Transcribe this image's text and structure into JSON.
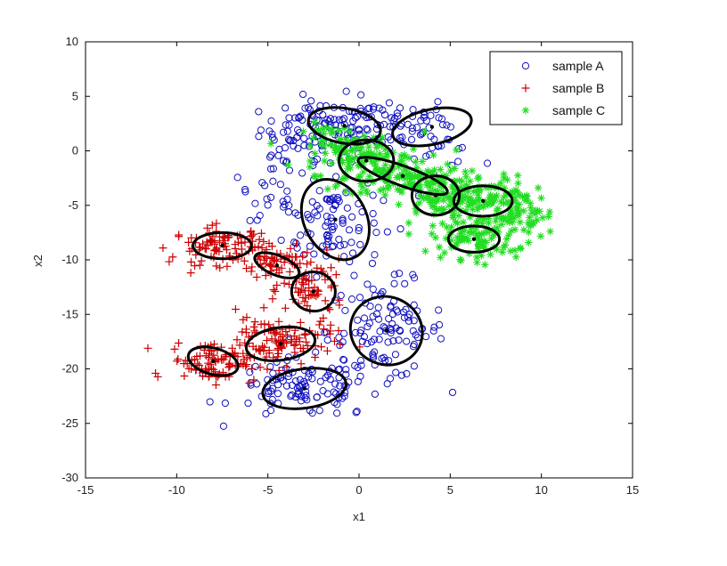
{
  "chart_data": {
    "type": "scatter",
    "xlabel": "x1",
    "ylabel": "x2",
    "xlim": [
      -15,
      15
    ],
    "ylim": [
      -30,
      10
    ],
    "xticks": [
      -15,
      -10,
      -5,
      0,
      5,
      10,
      15
    ],
    "yticks": [
      10,
      5,
      0,
      -5,
      -10,
      -15,
      -20,
      -25,
      -30
    ],
    "grid": false,
    "legend_position": "top-right",
    "series": [
      {
        "name": "sample A",
        "marker": "circle",
        "color": "#1010c0",
        "clusters": [
          {
            "cx": -2.0,
            "cy": 2.0,
            "sx": 2.0,
            "sy": 1.5,
            "n": 90
          },
          {
            "cx": 1.5,
            "cy": 2.5,
            "sx": 2.2,
            "sy": 1.6,
            "n": 70
          },
          {
            "cx": -1.5,
            "cy": -6.5,
            "sx": 1.6,
            "sy": 2.8,
            "n": 90
          },
          {
            "cx": 1.5,
            "cy": -16.5,
            "sx": 1.9,
            "sy": 2.6,
            "n": 110
          },
          {
            "cx": -3.0,
            "cy": -21.8,
            "sx": 2.3,
            "sy": 1.6,
            "n": 110
          },
          {
            "cx": -4.0,
            "cy": -2.0,
            "sx": 1.4,
            "sy": 2.5,
            "n": 40
          },
          {
            "cx": 4.0,
            "cy": 1.0,
            "sx": 1.5,
            "sy": 1.5,
            "n": 25
          }
        ]
      },
      {
        "name": "sample B",
        "marker": "plus",
        "color": "#cc0000",
        "clusters": [
          {
            "cx": -7.5,
            "cy": -8.7,
            "sx": 1.6,
            "sy": 1.0,
            "n": 100
          },
          {
            "cx": -4.5,
            "cy": -10.5,
            "sx": 1.1,
            "sy": 0.9,
            "n": 50
          },
          {
            "cx": -2.5,
            "cy": -12.8,
            "sx": 1.0,
            "sy": 1.5,
            "n": 60
          },
          {
            "cx": -4.5,
            "cy": -17.5,
            "sx": 1.8,
            "sy": 1.4,
            "n": 110
          },
          {
            "cx": -8.0,
            "cy": -19.3,
            "sx": 1.4,
            "sy": 1.1,
            "n": 90
          }
        ]
      },
      {
        "name": "sample C",
        "marker": "star",
        "color": "#22dd22",
        "clusters": [
          {
            "cx": 0.5,
            "cy": -1.0,
            "sx": 1.8,
            "sy": 1.6,
            "n": 110
          },
          {
            "cx": 2.5,
            "cy": -2.5,
            "sx": 2.0,
            "sy": 1.0,
            "n": 70
          },
          {
            "cx": 4.2,
            "cy": -4.2,
            "sx": 1.2,
            "sy": 1.5,
            "n": 80
          },
          {
            "cx": 6.8,
            "cy": -4.5,
            "sx": 1.6,
            "sy": 1.3,
            "n": 110
          },
          {
            "cx": 6.3,
            "cy": -8.0,
            "sx": 1.4,
            "sy": 1.1,
            "n": 90
          },
          {
            "cx": 9.0,
            "cy": -6.0,
            "sx": 1.0,
            "sy": 1.4,
            "n": 50
          },
          {
            "cx": -1.0,
            "cy": 0.5,
            "sx": 1.2,
            "sy": 1.2,
            "n": 40
          }
        ]
      }
    ],
    "ellipses": [
      {
        "cx": -0.8,
        "cy": 2.3,
        "rx": 2.0,
        "ry": 1.6,
        "angle": 10
      },
      {
        "cx": 4.0,
        "cy": 2.2,
        "rx": 2.2,
        "ry": 1.6,
        "angle": -12
      },
      {
        "cx": 0.4,
        "cy": -0.9,
        "rx": 1.5,
        "ry": 1.9,
        "angle": 0
      },
      {
        "cx": 2.4,
        "cy": -2.3,
        "rx": 2.6,
        "ry": 0.9,
        "angle": 20
      },
      {
        "cx": 4.2,
        "cy": -4.1,
        "rx": 1.3,
        "ry": 1.8,
        "angle": 0
      },
      {
        "cx": 6.8,
        "cy": -4.6,
        "rx": 1.6,
        "ry": 1.4,
        "angle": 0
      },
      {
        "cx": 6.3,
        "cy": -8.1,
        "rx": 1.4,
        "ry": 1.2,
        "angle": 0
      },
      {
        "cx": -1.3,
        "cy": -6.3,
        "rx": 1.7,
        "ry": 3.9,
        "angle": -28
      },
      {
        "cx": -7.5,
        "cy": -8.7,
        "rx": 1.6,
        "ry": 1.2,
        "angle": 0
      },
      {
        "cx": -4.5,
        "cy": -10.5,
        "rx": 1.3,
        "ry": 0.9,
        "angle": 22
      },
      {
        "cx": -2.5,
        "cy": -12.9,
        "rx": 1.2,
        "ry": 1.8,
        "angle": 5
      },
      {
        "cx": -4.3,
        "cy": -17.7,
        "rx": 1.9,
        "ry": 1.5,
        "angle": -8
      },
      {
        "cx": -8.0,
        "cy": -19.3,
        "rx": 1.4,
        "ry": 1.2,
        "angle": 15
      },
      {
        "cx": 1.5,
        "cy": -16.5,
        "rx": 2.0,
        "ry": 3.1,
        "angle": 25
      },
      {
        "cx": -3.0,
        "cy": -21.8,
        "rx": 2.3,
        "ry": 1.8,
        "angle": -8
      }
    ]
  }
}
